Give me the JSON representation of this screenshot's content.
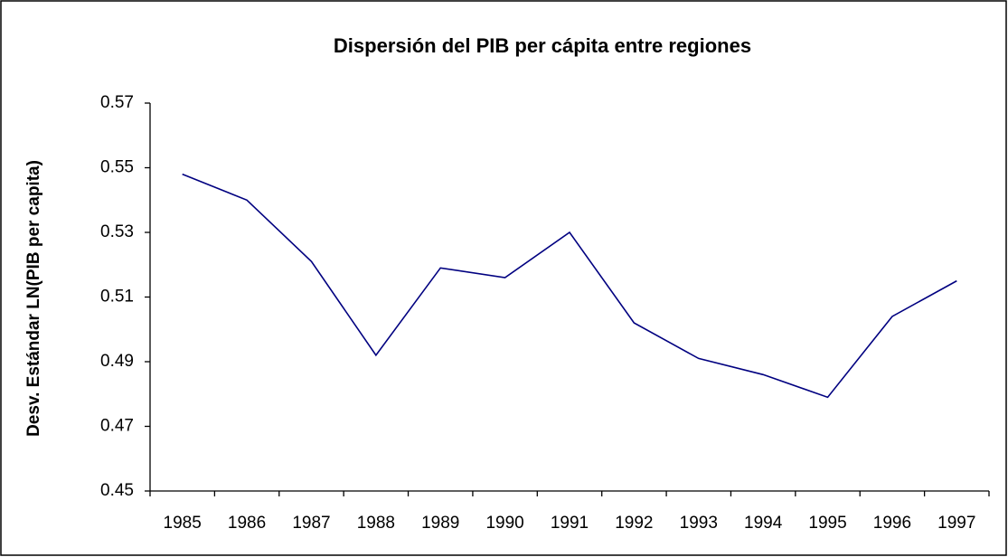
{
  "chart_data": {
    "type": "line",
    "title": "Dispersión del PIB per cápita entre regiones",
    "y_label": "Desv. Estándar LN(PIB per capita)",
    "categories": [
      "1985",
      "1986",
      "1987",
      "1988",
      "1989",
      "1990",
      "1991",
      "1992",
      "1993",
      "1994",
      "1995",
      "1996",
      "1997"
    ],
    "series": [
      {
        "name": "Desv. Estándar",
        "color": "#000080",
        "values": [
          0.548,
          0.54,
          0.521,
          0.492,
          0.519,
          0.516,
          0.53,
          0.502,
          0.491,
          0.486,
          0.479,
          0.504,
          0.515
        ]
      }
    ],
    "ylim": [
      0.45,
      0.57
    ],
    "yticks": [
      0.45,
      0.47,
      0.49,
      0.51,
      0.53,
      0.55,
      0.57
    ],
    "grid": false
  }
}
